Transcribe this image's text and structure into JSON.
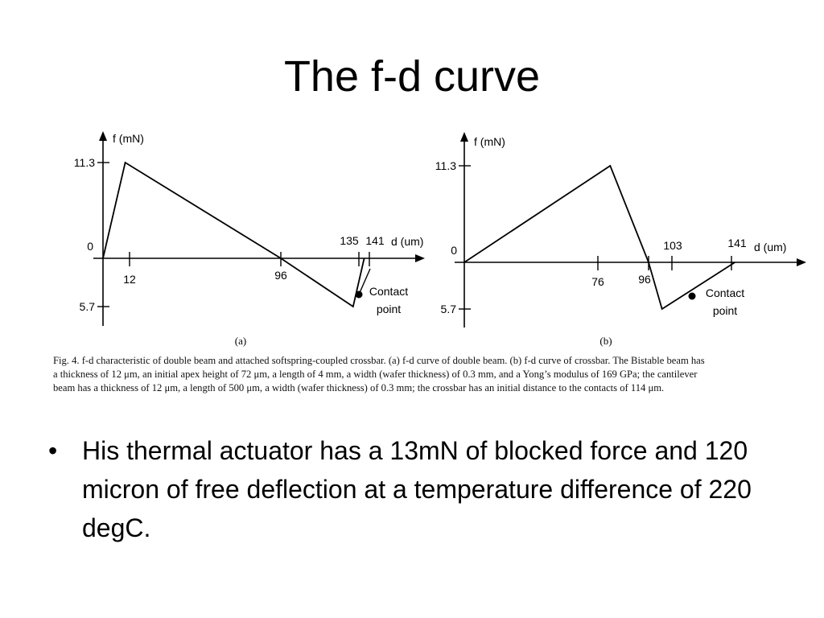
{
  "slide": {
    "title": "The f-d curve"
  },
  "figure": {
    "caption_lines": [
      "Fig. 4.    f-d characteristic of double beam and attached softspring-coupled crossbar. (a) f-d curve of double beam. (b) f-d curve of crossbar. The Bistable beam has",
      "a thickness of 12 μm, an initial apex height of 72 μm, a length of 4 mm, a width (wafer thickness) of 0.3 mm, and a Yong’s modulus of 169 GPa; the cantilever",
      "beam has a thickness of 12 μm, a length of 500 μm, a width (wafer thickness) of 0.3 mm; the crossbar has an initial distance to the contacts of 114 μm."
    ]
  },
  "bullets": [
    "His thermal actuator has a 13mN of blocked force and 120 micron of free deflection at a temperature difference of 220 degC."
  ],
  "chart_data": [
    {
      "type": "line",
      "panel_label": "(a)",
      "xlabel": "d (um)",
      "ylabel": "f (mN)",
      "x_ticks": [
        "12",
        "96",
        "135",
        "141"
      ],
      "y_ticks": [
        "11.3",
        "0",
        "5.7"
      ],
      "points": [
        [
          0,
          0
        ],
        [
          12,
          11.3
        ],
        [
          96,
          0
        ],
        [
          135,
          -5.7
        ],
        [
          141,
          0
        ]
      ],
      "annotation": {
        "text_line1": "Contact",
        "text_line2": "point",
        "point": [
          135,
          -5.7
        ]
      },
      "xlim": [
        0,
        150
      ],
      "ylim": [
        -5.7,
        11.3
      ]
    },
    {
      "type": "line",
      "panel_label": "(b)",
      "xlabel": "d (um)",
      "ylabel": "f (mN)",
      "x_ticks": [
        "76",
        "96",
        "103",
        "141"
      ],
      "y_ticks": [
        "11.3",
        "0",
        "5.7"
      ],
      "points": [
        [
          0,
          0
        ],
        [
          76,
          11.3
        ],
        [
          96,
          0
        ],
        [
          103,
          -5.7
        ],
        [
          141,
          0
        ]
      ],
      "annotation": {
        "text_line1": "Contact",
        "text_line2": "point",
        "point": [
          114,
          -3.5
        ]
      },
      "xlim": [
        0,
        150
      ],
      "ylim": [
        -5.7,
        11.3
      ]
    }
  ]
}
